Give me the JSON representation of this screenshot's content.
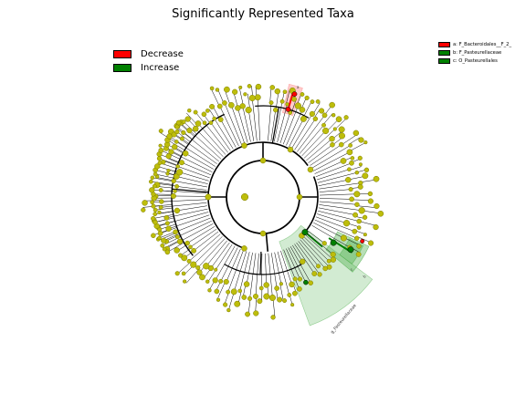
{
  "title": "Significantly Represented Taxa",
  "legend_groups": [
    {
      "label": "Decrease",
      "color": "#ff0000"
    },
    {
      "label": "Increase",
      "color": "#008000"
    }
  ],
  "legend_taxa": [
    {
      "label": "a: F_Bacteroidales__F_2_",
      "color": "#ff0000"
    },
    {
      "label": "b: F_Pasteurellaceae",
      "color": "#008000"
    },
    {
      "label": "c: O_Pasteurellales",
      "color": "#008000"
    }
  ],
  "highlights": [
    {
      "label": "a",
      "color": "#ff9999"
    },
    {
      "label": "b",
      "color": "#4daf4a"
    },
    {
      "label": "c",
      "color": "#4daf4a"
    },
    {
      "label": "g_Pasteurellaceae",
      "color": "#4daf4a"
    }
  ],
  "colors": {
    "node": "#bdbd0b",
    "node_stroke": "#7a7a00",
    "decrease": "#ff0000",
    "increase": "#008000"
  }
}
